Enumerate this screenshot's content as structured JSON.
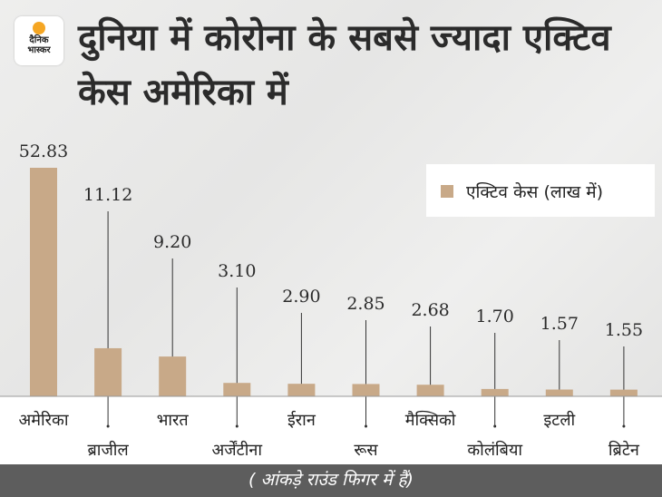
{
  "logo": {
    "line1": "दैनिक",
    "line2": "भास्कर"
  },
  "title": "दुनिया में कोरोना के सबसे ज्यादा एक्टिव केस अमेरिका में",
  "footer_note": "( आंकड़े राउंड फिगर में हैं)",
  "colors": {
    "bar": "#c8a988",
    "footer": "#5d5d5d"
  },
  "chart_data": {
    "type": "bar",
    "categories": [
      "अमेरिका",
      "ब्राजील",
      "भारत",
      "अर्जेंटीना",
      "ईरान",
      "रूस",
      "मैक्सिको",
      "कोलंबिया",
      "इटली",
      "ब्रिटेन"
    ],
    "values": [
      52.83,
      11.12,
      9.2,
      3.1,
      2.9,
      2.85,
      2.68,
      1.7,
      1.57,
      1.55
    ],
    "value_labels": [
      "52.83",
      "11.12",
      "9.20",
      "3.10",
      "2.90",
      "2.85",
      "2.68",
      "1.70",
      "1.57",
      "1.55"
    ],
    "series": [
      {
        "name": "एक्टिव केस (लाख में)"
      }
    ],
    "legend": "top-right",
    "grid": false,
    "ylim": [
      0,
      53
    ]
  }
}
